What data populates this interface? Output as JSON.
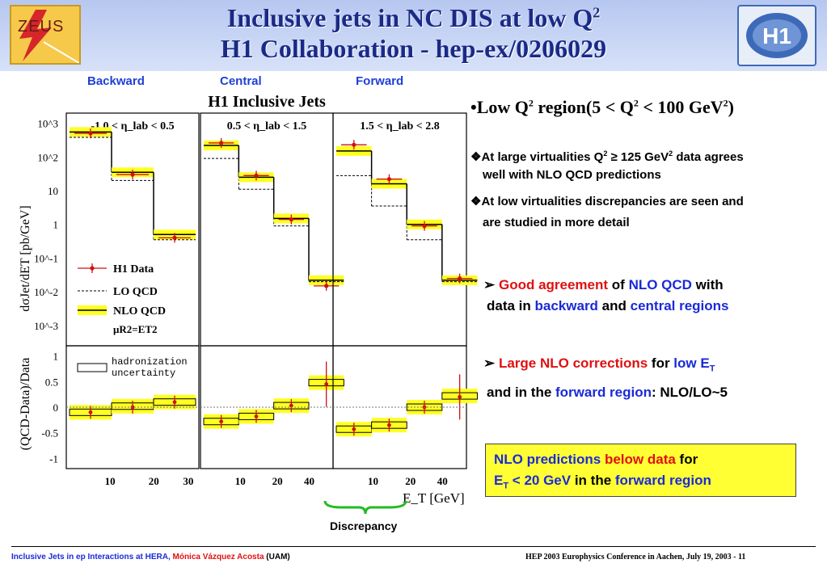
{
  "header": {
    "title_line1": "Inclusive jets in NC DIS at low Q",
    "title_line1_sup": "2",
    "title_line2": "H1 Collaboration - hep-ex/0206029",
    "zeus_logo_text": "ZEUS",
    "h1_logo_text": "H1"
  },
  "regions": {
    "backward": "Backward",
    "central": "Central",
    "forward": "Forward"
  },
  "chart_data": {
    "type": "step",
    "title": "H1 Inclusive Jets",
    "xlabel": "E_T [GeV]",
    "ylabel_top": "dσJet/dET [pb/GeV]",
    "ylabel_bottom": "(QCD-Data)/Data",
    "top_yscale": "log",
    "top_yticks": [
      "10^3",
      "10^2",
      "10",
      "1",
      "10^-1",
      "10^-2",
      "10^-3"
    ],
    "bottom_yticks": [
      "1",
      "0.5",
      "0",
      "-0.5",
      "-1"
    ],
    "legend": [
      "H1 Data",
      "LO QCD",
      "NLO QCD",
      "μR2=ET2"
    ],
    "legend_bottom": [
      "hadronization",
      "uncertainty"
    ],
    "panels": [
      {
        "label": "-1.0 < η_lab < 0.5",
        "x_ticks": [
          "10",
          "20",
          "30"
        ],
        "data": [
          500,
          30,
          0.4
        ],
        "nlo": [
          550,
          35,
          0.5
        ],
        "lo": [
          380,
          20,
          0.35
        ],
        "ratio_data": [
          -0.1,
          0.0,
          0.1
        ],
        "ratio_nlo": [
          -0.1,
          0.02,
          0.1
        ]
      },
      {
        "label": "0.5 < η_lab < 1.5",
        "x_ticks": [
          "10",
          "20",
          "40"
        ],
        "data": [
          260,
          28,
          1.4,
          0.015
        ],
        "nlo": [
          220,
          25,
          1.5,
          0.022
        ],
        "lo": [
          90,
          11,
          0.9,
          0.02
        ],
        "ratio_data": [
          -0.28,
          -0.18,
          0.03,
          0.45
        ],
        "ratio_nlo": [
          -0.28,
          -0.18,
          0.03,
          0.48
        ]
      },
      {
        "label": "1.5 < η_lab < 2.8",
        "x_ticks": [
          "10",
          "20",
          "40"
        ],
        "data": [
          230,
          22,
          0.9,
          0.025
        ],
        "nlo": [
          150,
          16,
          1.0,
          0.022
        ],
        "lo": [
          28,
          3.5,
          0.35,
          0.02
        ],
        "ratio_data": [
          -0.43,
          -0.35,
          0.0,
          0.2
        ],
        "ratio_nlo": [
          -0.43,
          -0.35,
          0.0,
          0.22
        ]
      }
    ]
  },
  "discrepancy_label": "Discrepancy",
  "right": {
    "bullet_main": "Low Q",
    "bullet_main_rest": " region(5 < Q",
    "bullet_main_end": " < 100 GeV",
    "sup2": "2",
    "close": ")",
    "p1_a": "At large virtualities Q",
    "p1_b": " ≥ 125 GeV",
    "p1_c": " data agrees",
    "p1_line2": "well with NLO QCD predictions",
    "p2_line1": "At low virtualities discrepancies are seen and",
    "p2_line2": "are studied in more detail",
    "g1": "Good agreement",
    "g2": " of ",
    "g3": "NLO QCD",
    "g4": " with",
    "g5": "data in ",
    "g6": "backward",
    "g7": " and ",
    "g8": "central regions",
    "l1": "Large NLO corrections",
    "l2": " for ",
    "l3": "low E",
    "l3_sub": "T",
    "l4": "and in the ",
    "l5": "forward region",
    "l6": ": NLO/LO~5",
    "c1": "NLO predictions",
    "c2": " below data",
    "c3": " for",
    "c4": "E",
    "c4_sub": "T",
    "c5": " < 20 GeV",
    "c6": " in the ",
    "c7": "forward region"
  },
  "footer": {
    "left_a": "Inclusive Jets in ep Interactions at HERA,",
    "left_b": " Mónica Vázquez Acosta",
    "left_c": " (UAM)",
    "right": "HEP 2003 Europhysics Conference in Aachen, July  19, 2003 -  11"
  }
}
